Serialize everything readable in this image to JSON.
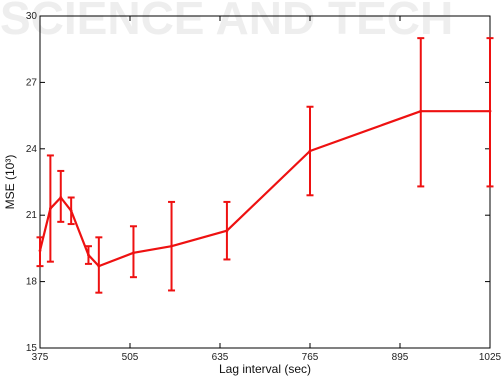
{
  "watermark": "SCIENCE AND TECH",
  "colors": {
    "series": "#ee1111",
    "axis": "#000000"
  },
  "chart_data": {
    "type": "line",
    "title": "",
    "xlabel": "Lag interval (sec)",
    "ylabel": "MSE (10³)",
    "xlim": [
      375,
      1025
    ],
    "ylim": [
      15,
      30
    ],
    "xticks": [
      375,
      505,
      635,
      765,
      895,
      1025
    ],
    "yticks": [
      15,
      18,
      21,
      24,
      27,
      30
    ],
    "grid": false,
    "legend": "none",
    "series": [
      {
        "x": [
          375,
          390,
          405,
          420,
          445,
          460,
          510,
          565,
          645,
          765,
          925,
          1025
        ],
        "y": [
          19.4,
          21.3,
          21.8,
          21.2,
          19.2,
          18.7,
          19.3,
          19.6,
          20.3,
          23.9,
          25.7,
          25.7
        ],
        "y_lower": [
          18.7,
          18.9,
          20.7,
          20.6,
          18.8,
          17.5,
          18.2,
          17.6,
          19.0,
          21.9,
          22.3,
          22.3
        ],
        "y_upper": [
          20.0,
          23.7,
          23.0,
          21.8,
          19.6,
          20.0,
          20.5,
          21.6,
          21.6,
          25.9,
          29.0,
          29.0
        ]
      }
    ]
  }
}
